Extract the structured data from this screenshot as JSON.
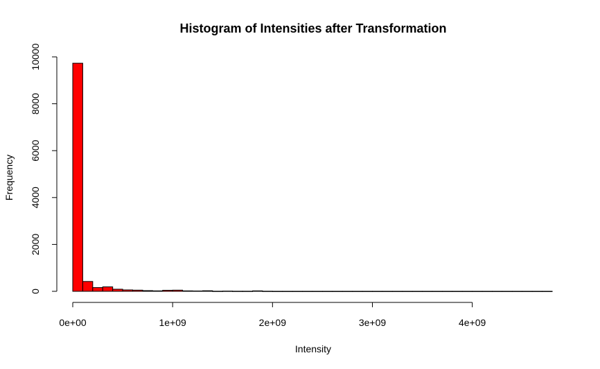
{
  "chart_data": {
    "type": "bar",
    "title": "Histogram of Intensities after Transformation",
    "xlabel": "Intensity",
    "ylabel": "Frequency",
    "bar_color": "#ff0000",
    "bin_width": 100000000,
    "bins_start": [
      0,
      100000000,
      200000000,
      300000000,
      400000000,
      500000000,
      600000000,
      700000000,
      800000000,
      900000000,
      1000000000,
      1100000000,
      1200000000,
      1300000000,
      1400000000,
      1500000000,
      1600000000,
      1700000000,
      1800000000,
      1900000000,
      2000000000,
      2100000000,
      2200000000,
      2300000000,
      2400000000,
      2500000000,
      2600000000,
      2700000000,
      2800000000,
      2900000000,
      3000000000,
      3100000000,
      3200000000,
      3300000000,
      3400000000,
      3500000000,
      3600000000,
      3700000000,
      3800000000,
      3900000000,
      4000000000,
      4100000000,
      4200000000,
      4300000000,
      4400000000,
      4500000000,
      4600000000,
      4700000000
    ],
    "values": [
      9730,
      420,
      160,
      190,
      90,
      60,
      50,
      30,
      20,
      45,
      50,
      20,
      15,
      25,
      5,
      10,
      5,
      5,
      20,
      5,
      2,
      2,
      2,
      2,
      2,
      2,
      2,
      2,
      2,
      2,
      2,
      2,
      2,
      2,
      2,
      2,
      2,
      2,
      2,
      2,
      2,
      2,
      2,
      2,
      2,
      2,
      2,
      2
    ],
    "xlim": [
      0,
      4800000000
    ],
    "ylim": [
      0,
      10000
    ],
    "x_ticks": [
      {
        "value": 0,
        "label": "0e+00"
      },
      {
        "value": 1000000000,
        "label": "1e+09"
      },
      {
        "value": 2000000000,
        "label": "2e+09"
      },
      {
        "value": 3000000000,
        "label": "3e+09"
      },
      {
        "value": 4000000000,
        "label": "4e+09"
      }
    ],
    "y_ticks": [
      {
        "value": 0,
        "label": "0"
      },
      {
        "value": 2000,
        "label": "2000"
      },
      {
        "value": 4000,
        "label": "4000"
      },
      {
        "value": 6000,
        "label": "6000"
      },
      {
        "value": 8000,
        "label": "8000"
      },
      {
        "value": 10000,
        "label": "10000"
      }
    ],
    "grid": false,
    "legend": "none"
  }
}
